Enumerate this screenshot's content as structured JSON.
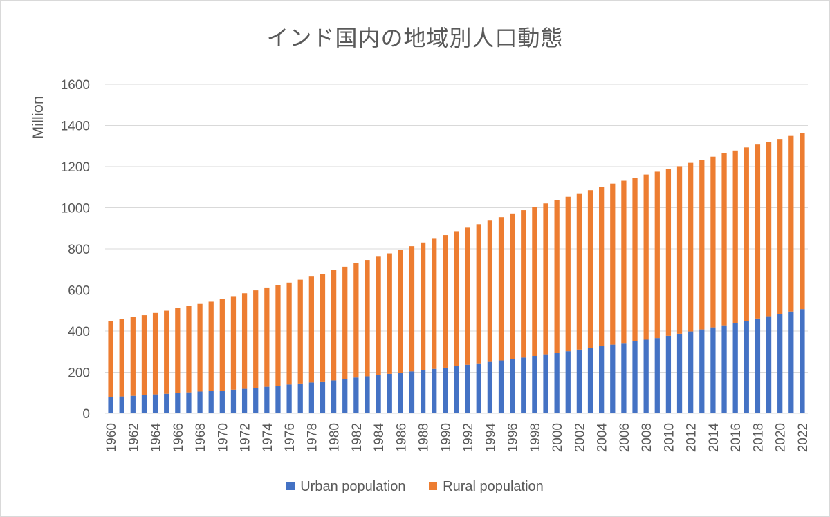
{
  "chart_data": {
    "type": "bar",
    "stacked": true,
    "title": "インド国内の地域別人口動態",
    "ylabel": "Million",
    "xlabel": "",
    "ylim": [
      0,
      1600
    ],
    "yticks": [
      0,
      200,
      400,
      600,
      800,
      1000,
      1200,
      1400,
      1600
    ],
    "grid": true,
    "legend_position": "bottom",
    "categories": [
      1960,
      1961,
      1962,
      1963,
      1964,
      1965,
      1966,
      1967,
      1968,
      1969,
      1970,
      1971,
      1972,
      1973,
      1974,
      1975,
      1976,
      1977,
      1978,
      1979,
      1980,
      1981,
      1982,
      1983,
      1984,
      1985,
      1986,
      1987,
      1988,
      1989,
      1990,
      1991,
      1992,
      1993,
      1994,
      1995,
      1996,
      1997,
      1998,
      1999,
      2000,
      2001,
      2002,
      2003,
      2004,
      2005,
      2006,
      2007,
      2008,
      2009,
      2010,
      2011,
      2012,
      2013,
      2014,
      2015,
      2016,
      2017,
      2018,
      2019,
      2020,
      2021,
      2022
    ],
    "x_tick_labels": [
      "1960",
      "1962",
      "1964",
      "1966",
      "1968",
      "1970",
      "1972",
      "1974",
      "1976",
      "1978",
      "1980",
      "1982",
      "1984",
      "1986",
      "1988",
      "1990",
      "1992",
      "1994",
      "1996",
      "1998",
      "2000",
      "2002",
      "2004",
      "2006",
      "2008",
      "2010",
      "2012",
      "2014",
      "2016",
      "2018",
      "2020",
      "2022"
    ],
    "series": [
      {
        "name": "Urban population",
        "color": "#4472c4",
        "values": [
          80,
          82,
          85,
          88,
          92,
          95,
          98,
          102,
          106,
          110,
          111,
          115,
          119,
          124,
          129,
          134,
          140,
          145,
          150,
          155,
          160,
          167,
          174,
          180,
          186,
          192,
          198,
          204,
          210,
          216,
          222,
          229,
          236,
          243,
          250,
          257,
          264,
          271,
          279,
          287,
          295,
          302,
          310,
          318,
          326,
          334,
          342,
          350,
          358,
          366,
          377,
          387,
          398,
          408,
          418,
          428,
          439,
          450,
          461,
          472,
          484,
          495,
          507
        ]
      },
      {
        "name": "Rural population",
        "color": "#ed7d31",
        "values": [
          368,
          377,
          383,
          389,
          396,
          404,
          413,
          419,
          426,
          433,
          447,
          455,
          465,
          474,
          483,
          491,
          496,
          505,
          515,
          524,
          536,
          546,
          556,
          566,
          576,
          586,
          597,
          609,
          621,
          633,
          645,
          657,
          667,
          677,
          687,
          697,
          708,
          717,
          725,
          734,
          741,
          751,
          760,
          767,
          776,
          783,
          789,
          796,
          803,
          809,
          810,
          815,
          820,
          825,
          830,
          836,
          839,
          843,
          846,
          849,
          850,
          854,
          856
        ]
      }
    ]
  }
}
